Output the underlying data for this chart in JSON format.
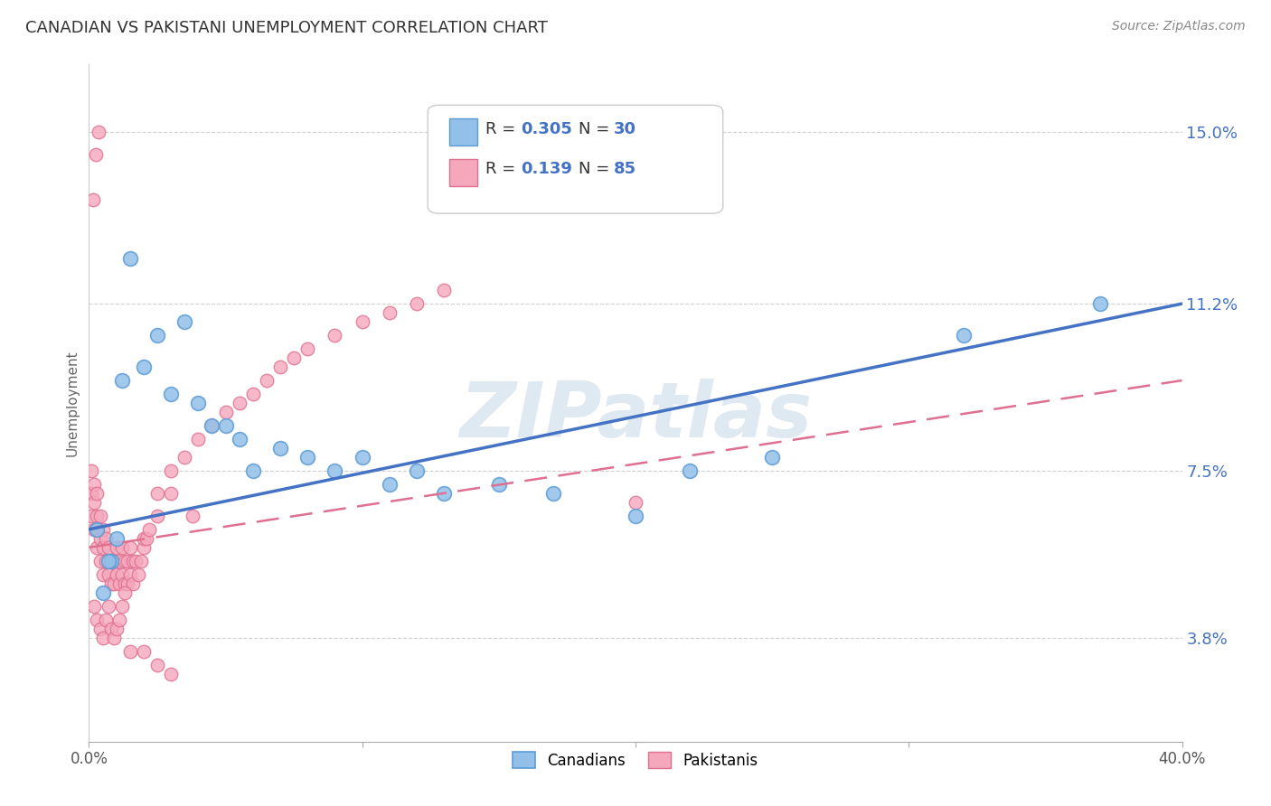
{
  "title": "CANADIAN VS PAKISTANI UNEMPLOYMENT CORRELATION CHART",
  "source": "Source: ZipAtlas.com",
  "ylabel": "Unemployment",
  "ytick_labels": [
    "3.8%",
    "7.5%",
    "11.2%",
    "15.0%"
  ],
  "ytick_values": [
    3.8,
    7.5,
    11.2,
    15.0
  ],
  "xmin": 0.0,
  "xmax": 40.0,
  "ymin": 1.5,
  "ymax": 16.5,
  "watermark": "ZIPatlas",
  "color_canadian": "#92C0E8",
  "color_pakistani": "#F5A8BC",
  "color_canadian_edge": "#5B9BD5",
  "color_pakistani_edge": "#E07090",
  "color_canadian_line": "#4472C4",
  "color_pakistani_line": "#E07090",
  "color_text_blue": "#4472C4",
  "color_grid": "#d0d0d0",
  "canadians_x": [
    0.3,
    0.5,
    0.8,
    1.0,
    1.2,
    1.5,
    2.0,
    2.5,
    3.0,
    3.5,
    4.0,
    4.5,
    5.0,
    5.5,
    6.0,
    7.0,
    8.0,
    9.0,
    10.0,
    11.0,
    12.0,
    13.0,
    15.0,
    17.0,
    20.0,
    22.0,
    25.0,
    32.0,
    37.0,
    0.7
  ],
  "canadians_y": [
    6.2,
    4.8,
    5.5,
    6.0,
    9.5,
    12.2,
    9.8,
    10.5,
    9.2,
    10.8,
    9.0,
    8.5,
    8.5,
    8.2,
    7.5,
    8.0,
    7.8,
    7.5,
    7.8,
    7.2,
    7.5,
    7.0,
    7.2,
    7.0,
    6.5,
    7.5,
    7.8,
    10.5,
    11.2,
    5.5
  ],
  "pakistanis_x": [
    0.1,
    0.1,
    0.1,
    0.2,
    0.2,
    0.2,
    0.3,
    0.3,
    0.3,
    0.3,
    0.4,
    0.4,
    0.4,
    0.5,
    0.5,
    0.5,
    0.6,
    0.6,
    0.7,
    0.7,
    0.8,
    0.8,
    0.9,
    0.9,
    1.0,
    1.0,
    1.1,
    1.1,
    1.2,
    1.2,
    1.3,
    1.3,
    1.4,
    1.4,
    1.5,
    1.5,
    1.6,
    1.6,
    1.7,
    1.8,
    1.9,
    2.0,
    2.0,
    2.1,
    2.2,
    2.5,
    2.5,
    3.0,
    3.0,
    3.5,
    4.0,
    4.5,
    5.0,
    5.5,
    6.0,
    6.5,
    7.0,
    7.5,
    8.0,
    9.0,
    10.0,
    11.0,
    12.0,
    13.0,
    0.2,
    0.3,
    0.4,
    0.5,
    0.6,
    0.7,
    0.8,
    0.9,
    1.0,
    1.1,
    1.2,
    1.3,
    1.5,
    2.0,
    2.5,
    3.0,
    0.15,
    0.25,
    0.35,
    20.0,
    3.8
  ],
  "pakistanis_y": [
    6.5,
    7.0,
    7.5,
    6.2,
    6.8,
    7.2,
    5.8,
    6.2,
    6.5,
    7.0,
    5.5,
    6.0,
    6.5,
    5.2,
    5.8,
    6.2,
    5.5,
    6.0,
    5.2,
    5.8,
    5.0,
    5.5,
    5.0,
    5.5,
    5.2,
    5.8,
    5.0,
    5.5,
    5.2,
    5.8,
    5.0,
    5.5,
    5.0,
    5.5,
    5.2,
    5.8,
    5.0,
    5.5,
    5.5,
    5.2,
    5.5,
    5.8,
    6.0,
    6.0,
    6.2,
    6.5,
    7.0,
    7.0,
    7.5,
    7.8,
    8.2,
    8.5,
    8.8,
    9.0,
    9.2,
    9.5,
    9.8,
    10.0,
    10.2,
    10.5,
    10.8,
    11.0,
    11.2,
    11.5,
    4.5,
    4.2,
    4.0,
    3.8,
    4.2,
    4.5,
    4.0,
    3.8,
    4.0,
    4.2,
    4.5,
    4.8,
    3.5,
    3.5,
    3.2,
    3.0,
    13.5,
    14.5,
    15.0,
    6.8,
    6.5
  ],
  "can_line_x0": 0.0,
  "can_line_y0": 6.2,
  "can_line_x1": 40.0,
  "can_line_y1": 11.2,
  "pak_line_x0": 0.0,
  "pak_line_y0": 5.8,
  "pak_line_x1": 40.0,
  "pak_line_y1": 9.5
}
